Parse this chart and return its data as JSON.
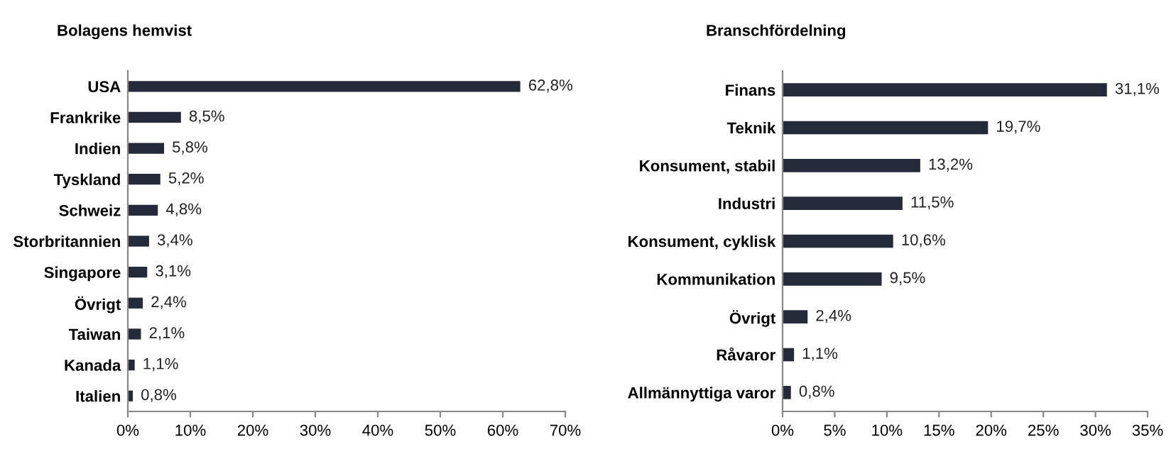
{
  "chart_data": [
    {
      "type": "bar",
      "orientation": "horizontal",
      "title": "Bolagens hemvist",
      "categories": [
        "USA",
        "Frankrike",
        "Indien",
        "Tyskland",
        "Schweiz",
        "Storbritannien",
        "Singapore",
        "Övrigt",
        "Taiwan",
        "Kanada",
        "Italien"
      ],
      "values": [
        62.8,
        8.5,
        5.8,
        5.2,
        4.8,
        3.4,
        3.1,
        2.4,
        2.1,
        1.1,
        0.8
      ],
      "value_labels": [
        "62,8%",
        "8,5%",
        "5,8%",
        "5,2%",
        "4,8%",
        "3,4%",
        "3,1%",
        "2,4%",
        "2,1%",
        "1,1%",
        "0,8%"
      ],
      "color": "#252a3a",
      "xlim": [
        0,
        70
      ],
      "xticks": [
        {
          "value": 0,
          "label": "0%"
        },
        {
          "value": 10,
          "label": "10%"
        },
        {
          "value": 20,
          "label": "20%"
        },
        {
          "value": 30,
          "label": "30%"
        },
        {
          "value": 40,
          "label": "40%"
        },
        {
          "value": 50,
          "label": "50%"
        },
        {
          "value": 60,
          "label": "60%"
        },
        {
          "value": 70,
          "label": "70%"
        }
      ]
    },
    {
      "type": "bar",
      "orientation": "horizontal",
      "title": "Branschfördelning",
      "categories": [
        "Finans",
        "Teknik",
        "Konsument, stabil",
        "Industri",
        "Konsument, cyklisk",
        "Kommunikation",
        "Övrigt",
        "Råvaror",
        "Allmännyttiga varor"
      ],
      "values": [
        31.1,
        19.7,
        13.2,
        11.5,
        10.6,
        9.5,
        2.4,
        1.1,
        0.8
      ],
      "value_labels": [
        "31,1%",
        "19,7%",
        "13,2%",
        "11,5%",
        "10,6%",
        "9,5%",
        "2,4%",
        "1,1%",
        "0,8%"
      ],
      "color": "#252a3a",
      "xlim": [
        0,
        35
      ],
      "xticks": [
        {
          "value": 0,
          "label": "0%"
        },
        {
          "value": 5,
          "label": "5%"
        },
        {
          "value": 10,
          "label": "10%"
        },
        {
          "value": 15,
          "label": "15%"
        },
        {
          "value": 20,
          "label": "20%"
        },
        {
          "value": 25,
          "label": "25%"
        },
        {
          "value": 30,
          "label": "30%"
        },
        {
          "value": 35,
          "label": "35%"
        }
      ]
    }
  ]
}
